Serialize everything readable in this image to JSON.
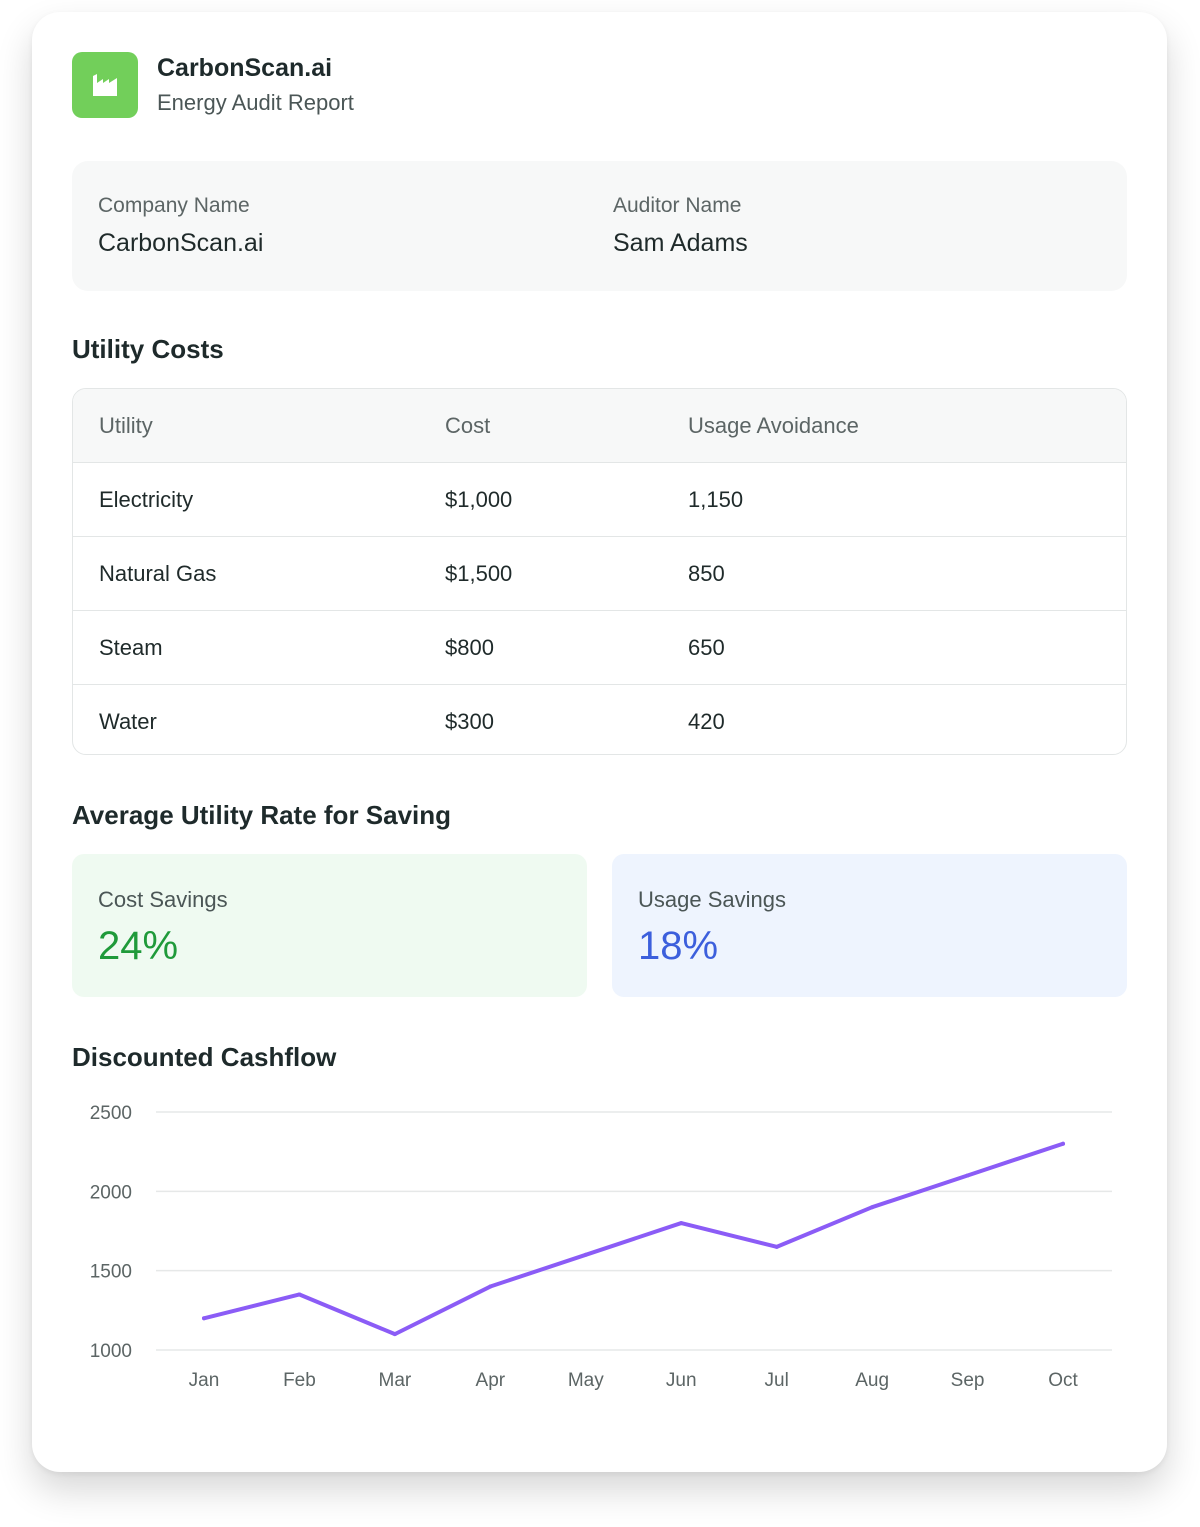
{
  "header": {
    "logo_icon": "factory-icon",
    "brand_name": "CarbonScan.ai",
    "subtitle": "Energy Audit Report",
    "accent_color": "#72cf5a"
  },
  "info": {
    "company_label": "Company Name",
    "company_value": "CarbonScan.ai",
    "auditor_label": "Auditor Name",
    "auditor_value": "Sam Adams"
  },
  "utility_costs": {
    "title": "Utility Costs",
    "columns": [
      "Utility",
      "Cost",
      "Usage Avoidance"
    ],
    "rows": [
      [
        "Electricity",
        "$1,000",
        "1,150"
      ],
      [
        "Natural Gas",
        "$1,500",
        "850"
      ],
      [
        "Steam",
        "$800",
        "650"
      ],
      [
        "Water",
        "$300",
        "420"
      ]
    ]
  },
  "savings": {
    "title": "Average Utility Rate for Saving",
    "cost_label": "Cost Savings",
    "cost_value": "24%",
    "cost_color": "#1f9a3a",
    "usage_label": "Usage Savings",
    "usage_value": "18%",
    "usage_color": "#3c5fdc"
  },
  "cashflow": {
    "title": "Discounted Cashflow"
  },
  "chart_data": {
    "type": "line",
    "categories": [
      "Jan",
      "Feb",
      "Mar",
      "Apr",
      "May",
      "Jun",
      "Jul",
      "Aug",
      "Sep",
      "Oct"
    ],
    "series": [
      {
        "values": [
          1200,
          1350,
          1100,
          1400,
          1600,
          1800,
          1650,
          1900,
          2100,
          2300
        ],
        "color": "#8b5cf6"
      }
    ],
    "yticks": [
      2500,
      2000,
      1500,
      1000
    ],
    "ylim": [
      1000,
      2500
    ],
    "grid": true,
    "xlabel": "",
    "ylabel": ""
  }
}
